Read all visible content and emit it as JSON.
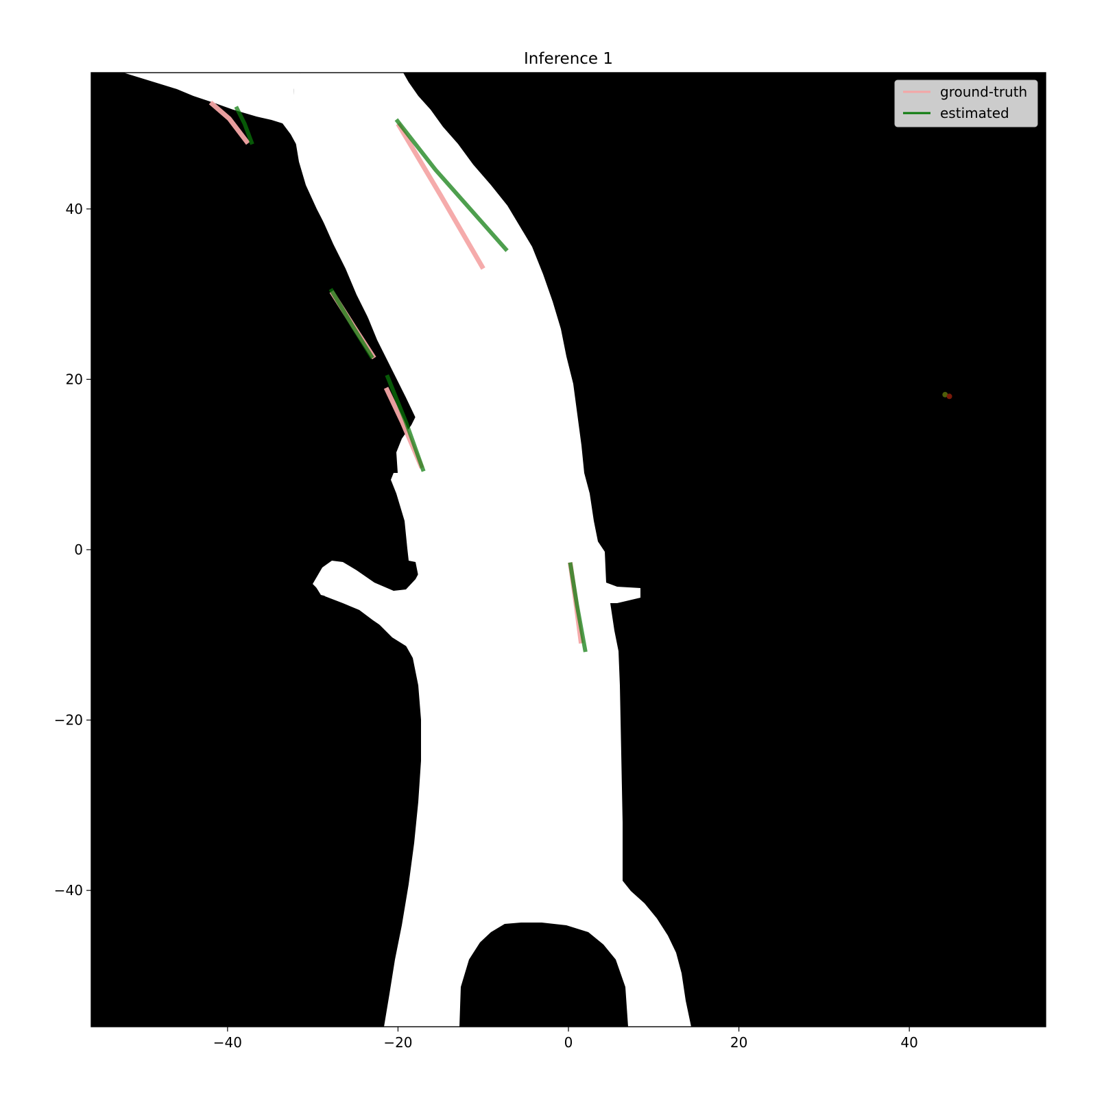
{
  "chart_data": {
    "type": "line",
    "title": "Inference 1",
    "xlabel": "",
    "ylabel": "",
    "xlim": [
      -56,
      56
    ],
    "ylim": [
      -56,
      56
    ],
    "x_ticks": [
      -40,
      -20,
      0,
      20,
      40
    ],
    "x_tick_labels": [
      "−40",
      "−20",
      "0",
      "20",
      "40"
    ],
    "y_ticks": [
      40,
      20,
      0,
      -20,
      -40
    ],
    "y_tick_labels": [
      "40",
      "20",
      "0",
      "−20",
      "−40"
    ],
    "grid": false,
    "legend_position": "top-right",
    "background": "binary occupancy map: white = free road space, black = occupied",
    "colors": {
      "ground_truth": "#f4a6a6",
      "estimated": "#0a7a0a",
      "overlap": "#4f5e0a",
      "road": "#ffffff",
      "map_background": "#000000"
    },
    "series": [
      {
        "name": "ground-truth",
        "segments": [
          [
            [
              -42.0,
              52.5
            ],
            [
              -39.8,
              50.6
            ],
            [
              -37.6,
              47.7
            ]
          ],
          [
            [
              -20.0,
              50.0
            ],
            [
              -15.0,
              41.6
            ],
            [
              -10.0,
              33.0
            ]
          ],
          [
            [
              -27.8,
              30.3
            ],
            [
              -25.2,
              26.2
            ],
            [
              -22.8,
              22.5
            ]
          ],
          [
            [
              -21.4,
              19.0
            ],
            [
              -19.5,
              15.0
            ],
            [
              -17.2,
              9.6
            ]
          ],
          [
            [
              0.2,
              -1.5
            ],
            [
              0.8,
              -5.7
            ],
            [
              1.5,
              -11.0
            ]
          ]
        ]
      },
      {
        "name": "estimated",
        "segments": [
          [
            [
              -39.0,
              52.0
            ],
            [
              -38.0,
              50.0
            ],
            [
              -37.1,
              47.6
            ]
          ],
          [
            [
              -20.2,
              50.5
            ],
            [
              -15.6,
              44.6
            ],
            [
              -7.2,
              35.1
            ]
          ],
          [
            [
              -27.9,
              30.6
            ],
            [
              -25.3,
              26.2
            ],
            [
              -23.0,
              22.5
            ]
          ],
          [
            [
              -21.3,
              20.5
            ],
            [
              -19.0,
              14.8
            ],
            [
              -17.0,
              9.2
            ]
          ],
          [
            [
              0.2,
              -1.5
            ],
            [
              1.0,
              -6.5
            ],
            [
              2.0,
              -12.0
            ]
          ]
        ]
      }
    ],
    "markers": [
      {
        "x": 44.2,
        "y": 18.2,
        "color": "#4f5e0a"
      },
      {
        "x": 44.7,
        "y": 18.0,
        "color": "#7a1a0a"
      }
    ],
    "legend": [
      {
        "label": "ground-truth",
        "color": "#f4a6a6"
      },
      {
        "label": "estimated",
        "color": "#0a7a0a"
      }
    ]
  }
}
